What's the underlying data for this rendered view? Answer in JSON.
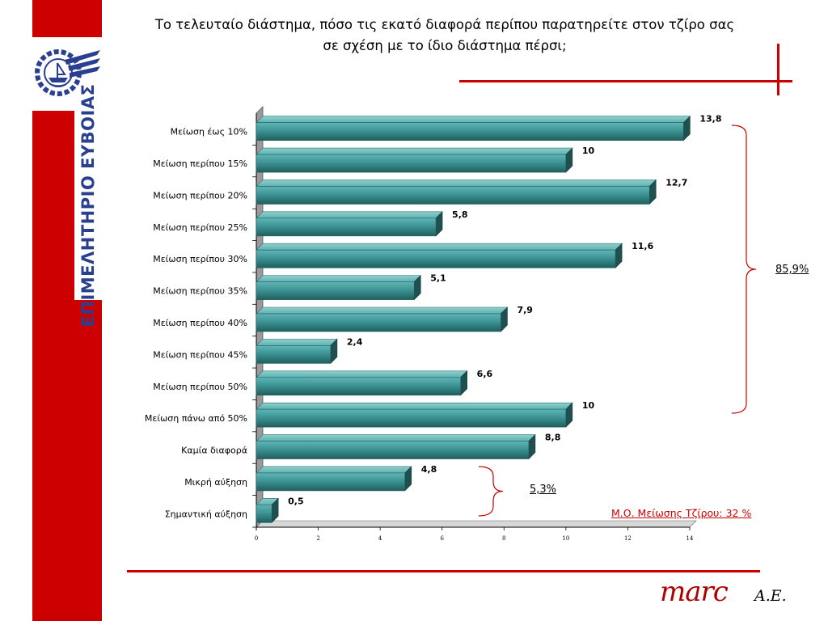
{
  "sidebar": {
    "vertical_text": "ΕΠΙΜΕΛΗΤΗΡΙΟ ΕΥΒΟΙΑΣ"
  },
  "title": {
    "line1": "Το τελευταίο διάστημα, πόσο τις εκατό διαφορά περίπου παρατηρείτε στον τζίρο σας",
    "line2": "σε σχέση με το ίδιο διάστημα πέρσι;"
  },
  "chart_data": {
    "type": "bar",
    "orientation": "horizontal",
    "categories": [
      "Μείωση έως 10%",
      "Μείωση περίπου 15%",
      "Μείωση περίπου 20%",
      "Μείωση περίπου 25%",
      "Μείωση περίπου 30%",
      "Μείωση περίπου 35%",
      "Μείωση περίπου 40%",
      "Μείωση περίπου 45%",
      "Μείωση περίπου 50%",
      "Μείωση πάνω από 50%",
      "Καμία διαφορά",
      "Μικρή αύξηση",
      "Σημαντική αύξηση"
    ],
    "values": [
      13.8,
      10,
      12.7,
      5.8,
      11.6,
      5.1,
      7.9,
      2.4,
      6.6,
      10,
      8.8,
      4.8,
      0.5
    ],
    "value_labels": [
      "13,8",
      "10",
      "12,7",
      "5,8",
      "11,6",
      "5,1",
      "7,9",
      "2,4",
      "6,6",
      "10",
      "8,8",
      "4,8",
      "0,5"
    ],
    "xlim": [
      0,
      14
    ],
    "xticks": [
      0,
      2,
      4,
      6,
      8,
      10,
      12,
      14
    ],
    "bar_color": "#3a8f8f",
    "grid": false
  },
  "annotations": {
    "decrease_total": "85,9%",
    "increase_total": "5,3%",
    "average_note": "Μ.Ο. Μείωσης Τζίρου: 32 %"
  },
  "footer": {
    "brand": "marc",
    "suffix": "A.E."
  },
  "colors": {
    "accent_red": "#cc0000",
    "brand_red": "#b00000",
    "logo_blue": "#2a3f8f"
  }
}
